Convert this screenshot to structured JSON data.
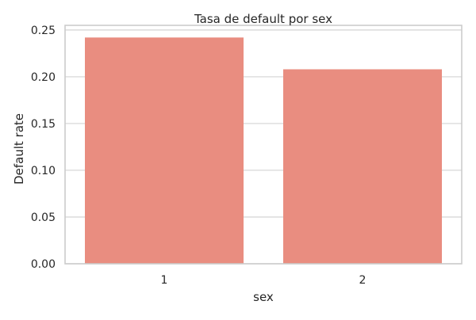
{
  "chart_data": {
    "type": "bar",
    "title": "Tasa de default por sex",
    "xlabel": "sex",
    "ylabel": "Default rate",
    "categories": [
      "1",
      "2"
    ],
    "values": [
      0.242,
      0.208
    ],
    "ylim": [
      0,
      0.255
    ],
    "yticks": [
      0.0,
      0.05,
      0.1,
      0.15,
      0.2,
      0.25
    ],
    "ytick_labels": [
      "0.00",
      "0.05",
      "0.10",
      "0.15",
      "0.20",
      "0.25"
    ],
    "grid": "horizontal",
    "legend": "none",
    "colors": {
      "bar": "#e98d80",
      "grid": "#d3d3d3",
      "frame": "#cccccc",
      "text": "#262626"
    }
  }
}
